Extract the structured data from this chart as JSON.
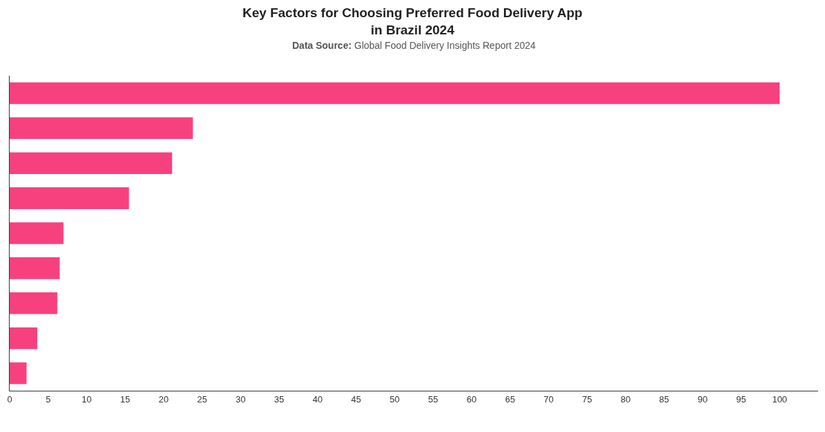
{
  "chart_data": {
    "type": "bar",
    "orientation": "horizontal",
    "title": "Key Factors for Choosing Preferred Food Delivery App\nin Brazil 2024",
    "subtitle": "Data Source: Global Food Delivery Insights Report 2024",
    "categories": [
      null,
      null,
      null,
      null,
      null,
      null,
      null,
      null,
      null
    ],
    "values": [
      100,
      23.8,
      21.1,
      15.5,
      7.0,
      6.5,
      6.2,
      3.6,
      2.2
    ],
    "color": "#f7417f",
    "xlim": [
      0,
      105
    ],
    "xticks": [
      0,
      5,
      10,
      15,
      20,
      25,
      30,
      35,
      40,
      45,
      50,
      55,
      60,
      65,
      70,
      75,
      80,
      85,
      90,
      95,
      100
    ],
    "tick_labels": "x",
    "legend": false
  }
}
